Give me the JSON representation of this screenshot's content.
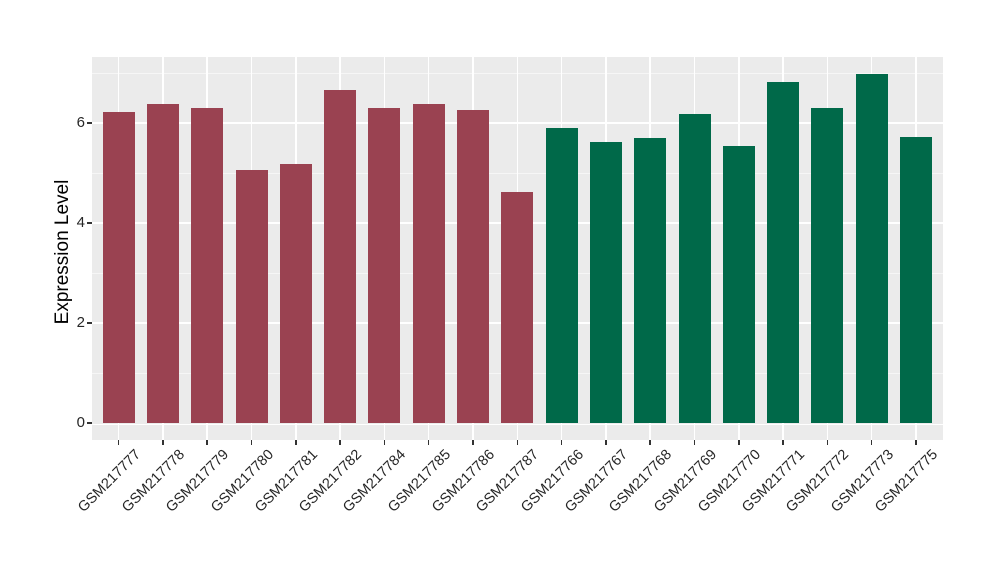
{
  "chart_data": {
    "type": "bar",
    "title": "",
    "xlabel": "",
    "ylabel": "Expression Level",
    "ylim": [
      0,
      7.3
    ],
    "yticks": [
      0,
      2,
      4,
      6
    ],
    "yticks_minor": [
      1,
      3,
      5,
      7
    ],
    "grid": "on",
    "legend_position": "none",
    "panel_background": "#EBEBEB",
    "grid_major_color": "#FFFFFF",
    "categories": [
      "GSM217777",
      "GSM217778",
      "GSM217779",
      "GSM217780",
      "GSM217781",
      "GSM217782",
      "GSM217784",
      "GSM217785",
      "GSM217786",
      "GSM217787",
      "GSM217766",
      "GSM217767",
      "GSM217768",
      "GSM217769",
      "GSM217770",
      "GSM217771",
      "GSM217772",
      "GSM217773",
      "GSM217775"
    ],
    "series": [
      {
        "name": "group-red",
        "color": "#9A4251",
        "categories": [
          "GSM217777",
          "GSM217778",
          "GSM217779",
          "GSM217780",
          "GSM217781",
          "GSM217782",
          "GSM217784",
          "GSM217785",
          "GSM217786",
          "GSM217787"
        ],
        "values": [
          6.22,
          6.38,
          6.3,
          5.06,
          5.19,
          6.66,
          6.3,
          6.38,
          6.26,
          4.62
        ]
      },
      {
        "name": "group-green",
        "color": "#006949",
        "categories": [
          "GSM217766",
          "GSM217767",
          "GSM217768",
          "GSM217769",
          "GSM217770",
          "GSM217771",
          "GSM217772",
          "GSM217773",
          "GSM217775"
        ],
        "values": [
          5.91,
          5.63,
          5.7,
          6.19,
          5.54,
          6.82,
          6.31,
          6.99,
          5.73
        ]
      }
    ]
  }
}
